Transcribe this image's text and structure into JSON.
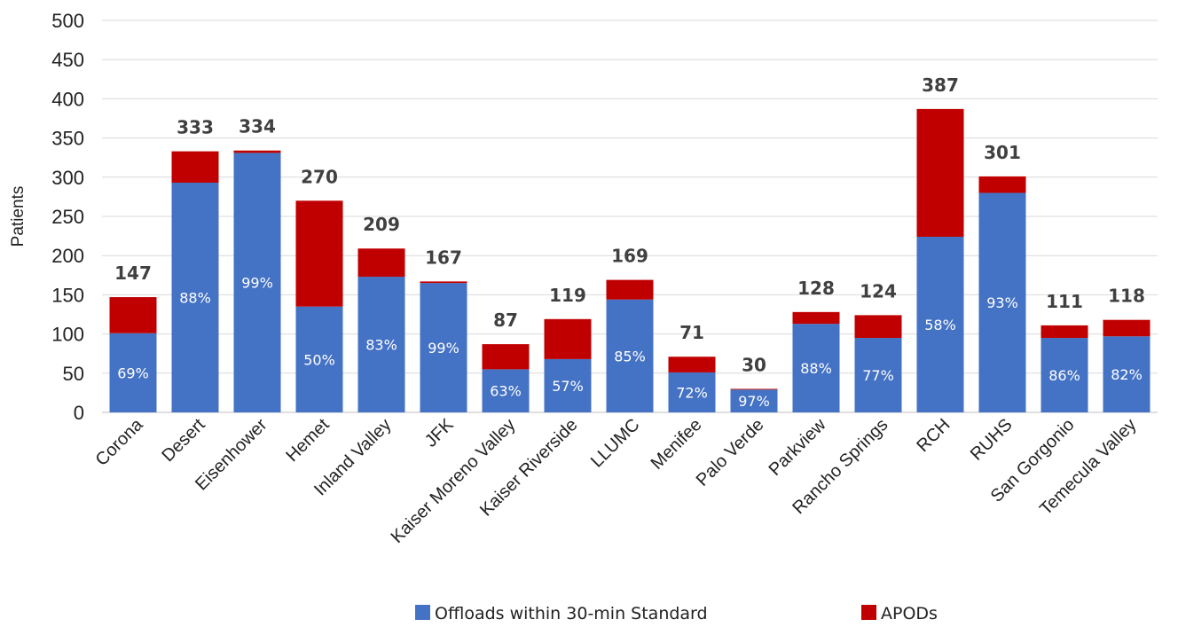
{
  "chart_data": {
    "type": "bar",
    "stacked": true,
    "title": "",
    "xlabel": "",
    "ylabel": "Patients",
    "ylim": [
      0,
      500
    ],
    "yticks": [
      0,
      50,
      100,
      150,
      200,
      250,
      300,
      350,
      400,
      450,
      500
    ],
    "grid": true,
    "legend_position": "bottom",
    "categories": [
      "Corona",
      "Desert",
      "Eisenhower",
      "Hemet",
      "Inland Valley",
      "JFK",
      "Kaiser Moreno Valley",
      "Kaiser Riverside",
      "LLUMC",
      "Menifee",
      "Palo Verde",
      "Parkview",
      "Rancho Springs",
      "RCH",
      "RUHS",
      "San Gorgonio",
      "Temecula Valley"
    ],
    "totals": [
      147,
      333,
      334,
      270,
      209,
      167,
      87,
      119,
      169,
      71,
      30,
      128,
      124,
      387,
      301,
      111,
      118
    ],
    "total_labels": [
      "147",
      "333",
      "334",
      "270",
      "209",
      "167",
      "87",
      "119",
      "169",
      "71",
      "30",
      "128",
      "124",
      "387",
      "301",
      "111",
      "118"
    ],
    "percent_labels": [
      "69%",
      "88%",
      "99%",
      "50%",
      "83%",
      "99%",
      "63%",
      "57%",
      "85%",
      "72%",
      "97%",
      "88%",
      "77%",
      "58%",
      "93%",
      "86%",
      "82%"
    ],
    "series": [
      {
        "name": "Offloads within 30-min Standard",
        "color": "#4472C4",
        "values": [
          101,
          293,
          331,
          135,
          173,
          165,
          55,
          68,
          144,
          51,
          29,
          113,
          95,
          224,
          280,
          95,
          97
        ]
      },
      {
        "name": "APODs",
        "color": "#C00000",
        "values": [
          46,
          40,
          3,
          135,
          36,
          2,
          32,
          51,
          25,
          20,
          1,
          15,
          29,
          163,
          21,
          16,
          21
        ]
      }
    ]
  }
}
